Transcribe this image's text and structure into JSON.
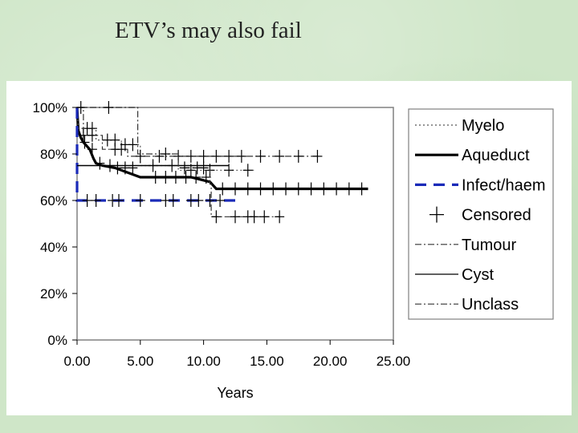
{
  "slide": {
    "title": "ETV’s may also fail"
  },
  "chart_data": {
    "type": "line",
    "xlabel": "Years",
    "ylabel": "",
    "xlim": [
      0,
      25
    ],
    "ylim": [
      0,
      100
    ],
    "x_ticks": [
      0,
      5,
      10,
      15,
      20,
      25
    ],
    "x_tick_labels": [
      "0.00",
      "5.00",
      "10.00",
      "15.00",
      "20.00",
      "25.00"
    ],
    "y_ticks": [
      0,
      20,
      40,
      60,
      80,
      100
    ],
    "y_tick_labels": [
      "0%",
      "20%",
      "40%",
      "60%",
      "80%",
      "100%"
    ],
    "legend_position": "right",
    "legend": [
      {
        "label": "Myelo",
        "style": "dotted",
        "color": "#555555"
      },
      {
        "label": "Aqueduct",
        "style": "thick",
        "color": "#000000"
      },
      {
        "label": "Infect/haem",
        "style": "dashed",
        "color": "#1a2ab8"
      },
      {
        "label": "Censored",
        "style": "marker",
        "color": "#000000"
      },
      {
        "label": "Tumour",
        "style": "dashdot",
        "color": "#333333"
      },
      {
        "label": "Cyst",
        "style": "solid",
        "color": "#000000"
      },
      {
        "label": "Unclass",
        "style": "dashdot",
        "color": "#333333"
      }
    ],
    "series": [
      {
        "name": "Aqueduct",
        "points": [
          [
            0,
            100
          ],
          [
            0.1,
            90
          ],
          [
            0.3,
            87
          ],
          [
            0.5,
            85
          ],
          [
            1,
            82
          ],
          [
            1.3,
            78
          ],
          [
            1.5,
            76
          ],
          [
            2,
            75
          ],
          [
            3,
            74
          ],
          [
            5,
            70
          ],
          [
            7,
            70
          ],
          [
            9,
            70
          ],
          [
            10.5,
            68
          ],
          [
            11,
            65
          ],
          [
            23,
            65
          ]
        ],
        "censored": [
          0.6,
          1.2,
          1.8,
          2.6,
          3.2,
          3.8,
          4.4,
          6.2,
          7.0,
          7.8,
          8.6,
          9.4,
          10.2,
          11.5,
          12.5,
          13.5,
          14.5,
          15.5,
          16.5,
          17.5,
          18.5,
          19.5,
          20.5,
          21.5,
          22.5
        ]
      },
      {
        "name": "Myelo",
        "points": [
          [
            0,
            100
          ],
          [
            0.1,
            91
          ],
          [
            1.5,
            91
          ],
          [
            1.5,
            86
          ],
          [
            3.5,
            86
          ],
          [
            3.5,
            84
          ],
          [
            5,
            84
          ],
          [
            5,
            75
          ],
          [
            8,
            75
          ],
          [
            8,
            73
          ],
          [
            14,
            73
          ]
        ],
        "censored": [
          0.8,
          1.2,
          2.4,
          3.0,
          3.8,
          4.4,
          6.0,
          7.5,
          9.0,
          10.5,
          12.0,
          13.5
        ]
      },
      {
        "name": "Infect/haem",
        "points": [
          [
            0,
            100
          ],
          [
            0,
            60
          ],
          [
            12.5,
            60
          ]
        ],
        "censored": [
          0.8,
          1.5,
          2.8,
          3.3,
          5.0,
          7.0,
          7.6,
          9.0,
          9.6,
          10.5,
          11.3
        ]
      },
      {
        "name": "Tumour",
        "points": [
          [
            0,
            100
          ],
          [
            0.5,
            100
          ],
          [
            0.5,
            88
          ],
          [
            2,
            88
          ],
          [
            2,
            82
          ],
          [
            4,
            82
          ],
          [
            4,
            79
          ],
          [
            19,
            79
          ]
        ],
        "censored": [
          0.5,
          1.2,
          3.0,
          3.5,
          5.0,
          6.5,
          8.0,
          9.0,
          10.0,
          11.0,
          12.0,
          13.0,
          14.5,
          16.0,
          17.5,
          19.0
        ]
      },
      {
        "name": "Cyst",
        "points": [
          [
            0,
            75
          ],
          [
            12,
            75
          ]
        ],
        "censored": []
      },
      {
        "name": "Unclass",
        "points": [
          [
            0,
            100
          ],
          [
            0.3,
            100
          ],
          [
            0.3,
            100
          ],
          [
            4.8,
            100
          ],
          [
            4.8,
            80
          ],
          [
            8,
            80
          ],
          [
            8,
            74
          ],
          [
            10.5,
            74
          ],
          [
            10.5,
            67
          ],
          [
            10.6,
            67
          ],
          [
            10.6,
            53
          ],
          [
            16,
            53
          ]
        ],
        "censored": [
          0.3,
          2.5,
          7.0,
          8.5,
          9.5,
          10.0,
          11.0,
          12.5,
          13.5,
          14.0,
          14.8,
          16.0
        ]
      }
    ]
  }
}
